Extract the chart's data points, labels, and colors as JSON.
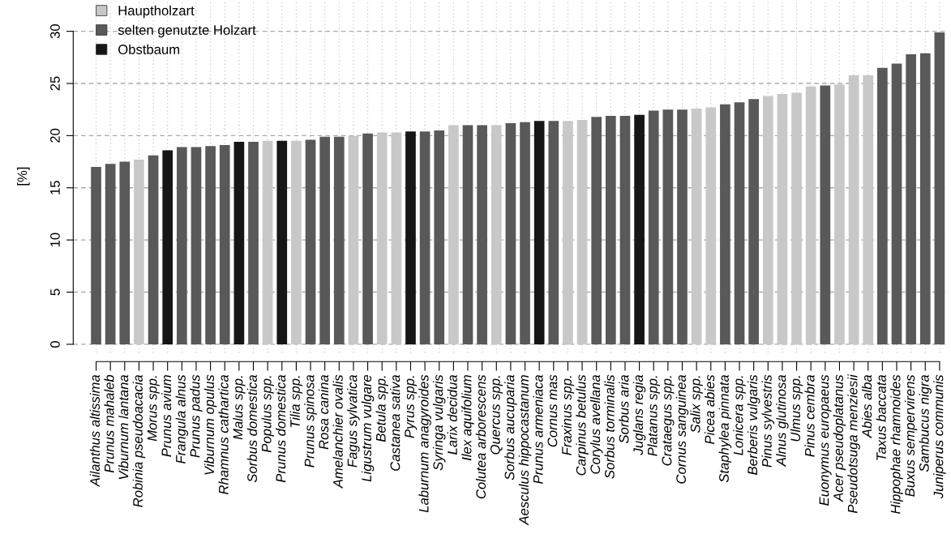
{
  "chart_data": {
    "type": "bar",
    "ylabel": "[%]",
    "categories": [
      "Ailanthus altissima",
      "Prunus mahaleb",
      "Viburnum lantana",
      "Robinia pseudoacacia",
      "Morus spp.",
      "Prunus avium",
      "Frangula alnus",
      "Prunus padus",
      "Viburnum opulus",
      "Rhamnus cathartica",
      "Malus spp.",
      "Sorbus domestica",
      "Populus spp.",
      "Prunus domestica",
      "Tilia spp.",
      "Prunus spinosa",
      "Rosa canina",
      "Amelanchier ovalis",
      "Fagus sylvatica",
      "Ligustrum vulgare",
      "Betula spp.",
      "Castanea sativa",
      "Pyrus spp.",
      "Laburnum anagyroides",
      "Syringa vulgaris",
      "Larix decidua",
      "Ilex aquifolium",
      "Colutea arborescens",
      "Quercus spp.",
      "Sorbus aucuparia",
      "Aesculus hippocastanum",
      "Prunus armeniaca",
      "Cornus mas",
      "Fraxinus spp.",
      "Carpinus betulus",
      "Corylus avellana",
      "Sorbus torminalis",
      "Sorbus aria",
      "Juglans regia",
      "Platanus spp.",
      "Crataegus spp.",
      "Cornus sanguinea",
      "Salix spp.",
      "Picea abies",
      "Staphylea pinnata",
      "Lonicera spp.",
      "Berberis vulgaris",
      "Pinus sylvestris",
      "Alnus glutinosa",
      "Ulmus spp.",
      "Pinus cembra",
      "Euonymus europaeus",
      "Acer pseudoplatanus",
      "Pseudotsuga menziesii",
      "Abies alba",
      "Taxus baccata",
      "Hippophae rhamnoides",
      "Buxus sempervirens",
      "Sambucus nigra",
      "Juniperus communis"
    ],
    "series": [
      {
        "name": "Hauptholzart",
        "color": "#c8c8c8",
        "values": [
          null,
          null,
          null,
          17.7,
          null,
          null,
          null,
          null,
          null,
          null,
          null,
          null,
          19.5,
          null,
          19.5,
          null,
          null,
          null,
          20.0,
          null,
          20.3,
          20.3,
          null,
          null,
          null,
          21.0,
          null,
          null,
          21.0,
          null,
          null,
          null,
          null,
          21.4,
          21.5,
          null,
          null,
          null,
          null,
          null,
          null,
          null,
          22.6,
          22.7,
          null,
          null,
          null,
          23.8,
          24.0,
          24.1,
          24.7,
          null,
          24.9,
          25.8,
          25.8,
          null,
          null,
          null,
          null,
          null
        ]
      },
      {
        "name": "selten genutzte Holzart",
        "color": "#595959",
        "values": [
          17.0,
          17.3,
          17.5,
          null,
          18.1,
          null,
          18.9,
          18.9,
          19.0,
          19.1,
          null,
          19.4,
          null,
          null,
          null,
          19.6,
          19.9,
          19.9,
          null,
          20.2,
          null,
          null,
          null,
          20.4,
          20.5,
          null,
          21.0,
          21.0,
          null,
          21.2,
          21.3,
          null,
          21.4,
          null,
          null,
          21.8,
          21.9,
          21.9,
          null,
          22.4,
          22.5,
          22.5,
          null,
          null,
          23.0,
          23.2,
          23.5,
          null,
          null,
          null,
          null,
          24.8,
          null,
          null,
          null,
          26.5,
          26.9,
          27.8,
          27.9,
          29.9
        ]
      },
      {
        "name": "Obstbaum",
        "color": "#161616",
        "values": [
          null,
          null,
          null,
          null,
          null,
          18.6,
          null,
          null,
          null,
          null,
          19.4,
          null,
          null,
          19.5,
          null,
          null,
          null,
          null,
          null,
          null,
          null,
          null,
          20.4,
          null,
          null,
          null,
          null,
          null,
          null,
          null,
          null,
          21.4,
          null,
          null,
          null,
          null,
          null,
          null,
          22.0,
          null,
          null,
          null,
          null,
          null,
          null,
          null,
          null,
          null,
          null,
          null,
          null,
          null,
          null,
          null,
          null,
          null,
          null,
          null,
          null,
          null
        ]
      }
    ],
    "ylim": [
      -0.8,
      33
    ],
    "yticks": [
      0,
      5,
      10,
      15,
      20,
      25,
      30
    ],
    "grid": true,
    "legend": "top left"
  }
}
